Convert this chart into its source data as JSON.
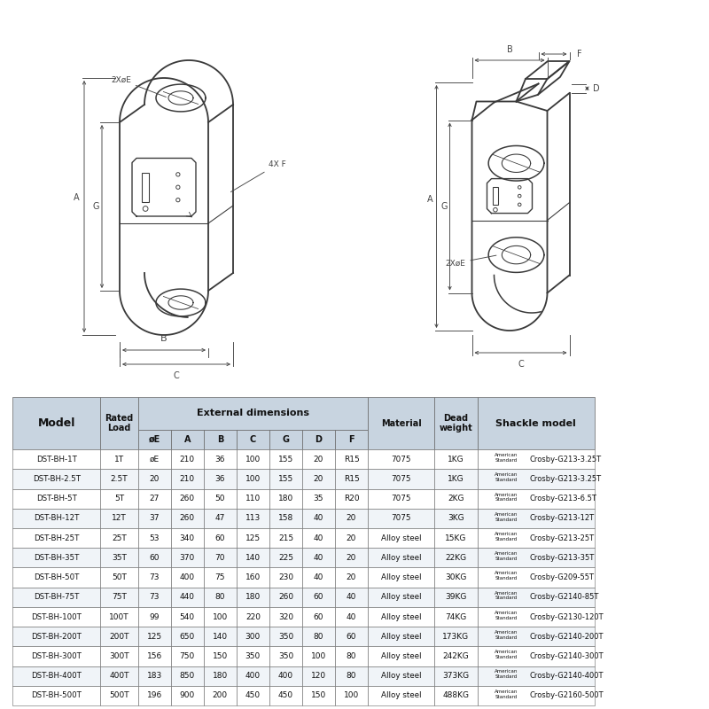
{
  "rows": [
    [
      "DST-BH-1T",
      "1T",
      "øE",
      "210",
      "36",
      "100",
      "155",
      "20",
      "R15",
      "7075",
      "1KG",
      "Crosby-G213-3.25T"
    ],
    [
      "DST-BH-2.5T",
      "2.5T",
      "20",
      "210",
      "36",
      "100",
      "155",
      "20",
      "R15",
      "7075",
      "1KG",
      "Crosby-G213-3.25T"
    ],
    [
      "DST-BH-5T",
      "5T",
      "27",
      "260",
      "50",
      "110",
      "180",
      "35",
      "R20",
      "7075",
      "2KG",
      "Crosby-G213-6.5T"
    ],
    [
      "DST-BH-12T",
      "12T",
      "37",
      "260",
      "47",
      "113",
      "158",
      "40",
      "20",
      "7075",
      "3KG",
      "Crosby-G213-12T"
    ],
    [
      "DST-BH-25T",
      "25T",
      "53",
      "340",
      "60",
      "125",
      "215",
      "40",
      "20",
      "Alloy steel",
      "15KG",
      "Crosby-G213-25T"
    ],
    [
      "DST-BH-35T",
      "35T",
      "60",
      "370",
      "70",
      "140",
      "225",
      "40",
      "20",
      "Alloy steel",
      "22KG",
      "Crosby-G213-35T"
    ],
    [
      "DST-BH-50T",
      "50T",
      "73",
      "400",
      "75",
      "160",
      "230",
      "40",
      "20",
      "Alloy steel",
      "30KG",
      "Crosby-G209-55T"
    ],
    [
      "DST-BH-75T",
      "75T",
      "73",
      "440",
      "80",
      "180",
      "260",
      "60",
      "40",
      "Alloy steel",
      "39KG",
      "Crosby-G2140-85T"
    ],
    [
      "DST-BH-100T",
      "100T",
      "99",
      "540",
      "100",
      "220",
      "320",
      "60",
      "40",
      "Alloy steel",
      "74KG",
      "Crosby-G2130-120T"
    ],
    [
      "DST-BH-200T",
      "200T",
      "125",
      "650",
      "140",
      "300",
      "350",
      "80",
      "60",
      "Alloy steel",
      "173KG",
      "Crosby-G2140-200T"
    ],
    [
      "DST-BH-300T",
      "300T",
      "156",
      "750",
      "150",
      "350",
      "350",
      "100",
      "80",
      "Alloy steel",
      "242KG",
      "Crosby-G2140-300T"
    ],
    [
      "DST-BH-400T",
      "400T",
      "183",
      "850",
      "180",
      "400",
      "400",
      "120",
      "80",
      "Alloy steel",
      "373KG",
      "Crosby-G2140-400T"
    ],
    [
      "DST-BH-500T",
      "500T",
      "196",
      "900",
      "200",
      "450",
      "450",
      "150",
      "100",
      "Alloy steel",
      "488KG",
      "Crosby-G2160-500T"
    ]
  ],
  "bg_color": "#ffffff",
  "header_bg": "#c8d4e0",
  "border_color": "#666666",
  "text_color": "#111111",
  "dc": "#3a3a3a",
  "dim_color": "#444444"
}
